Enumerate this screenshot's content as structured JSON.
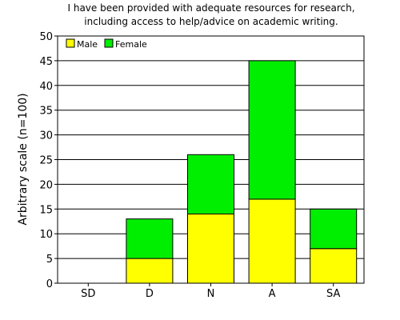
{
  "chart_data": {
    "type": "bar",
    "stacked": true,
    "title_lines": [
      "I have been provided with adequate resources for research,",
      "including access to help/advice on academic writing."
    ],
    "xlabel": "",
    "ylabel": "Arbitrary scale (n=100)",
    "categories": [
      "SD",
      "D",
      "N",
      "A",
      "SA"
    ],
    "series": [
      {
        "name": "Male",
        "values": [
          0,
          5,
          14,
          17,
          7
        ],
        "color": "#ffff00"
      },
      {
        "name": "Female",
        "values": [
          0,
          8,
          12,
          28,
          8
        ],
        "color": "#00ee00"
      }
    ],
    "ylim": [
      0,
      50
    ],
    "yticks": [
      0,
      5,
      10,
      15,
      20,
      25,
      30,
      35,
      40,
      45,
      50
    ],
    "grid": true,
    "legend_position": "top-left"
  }
}
